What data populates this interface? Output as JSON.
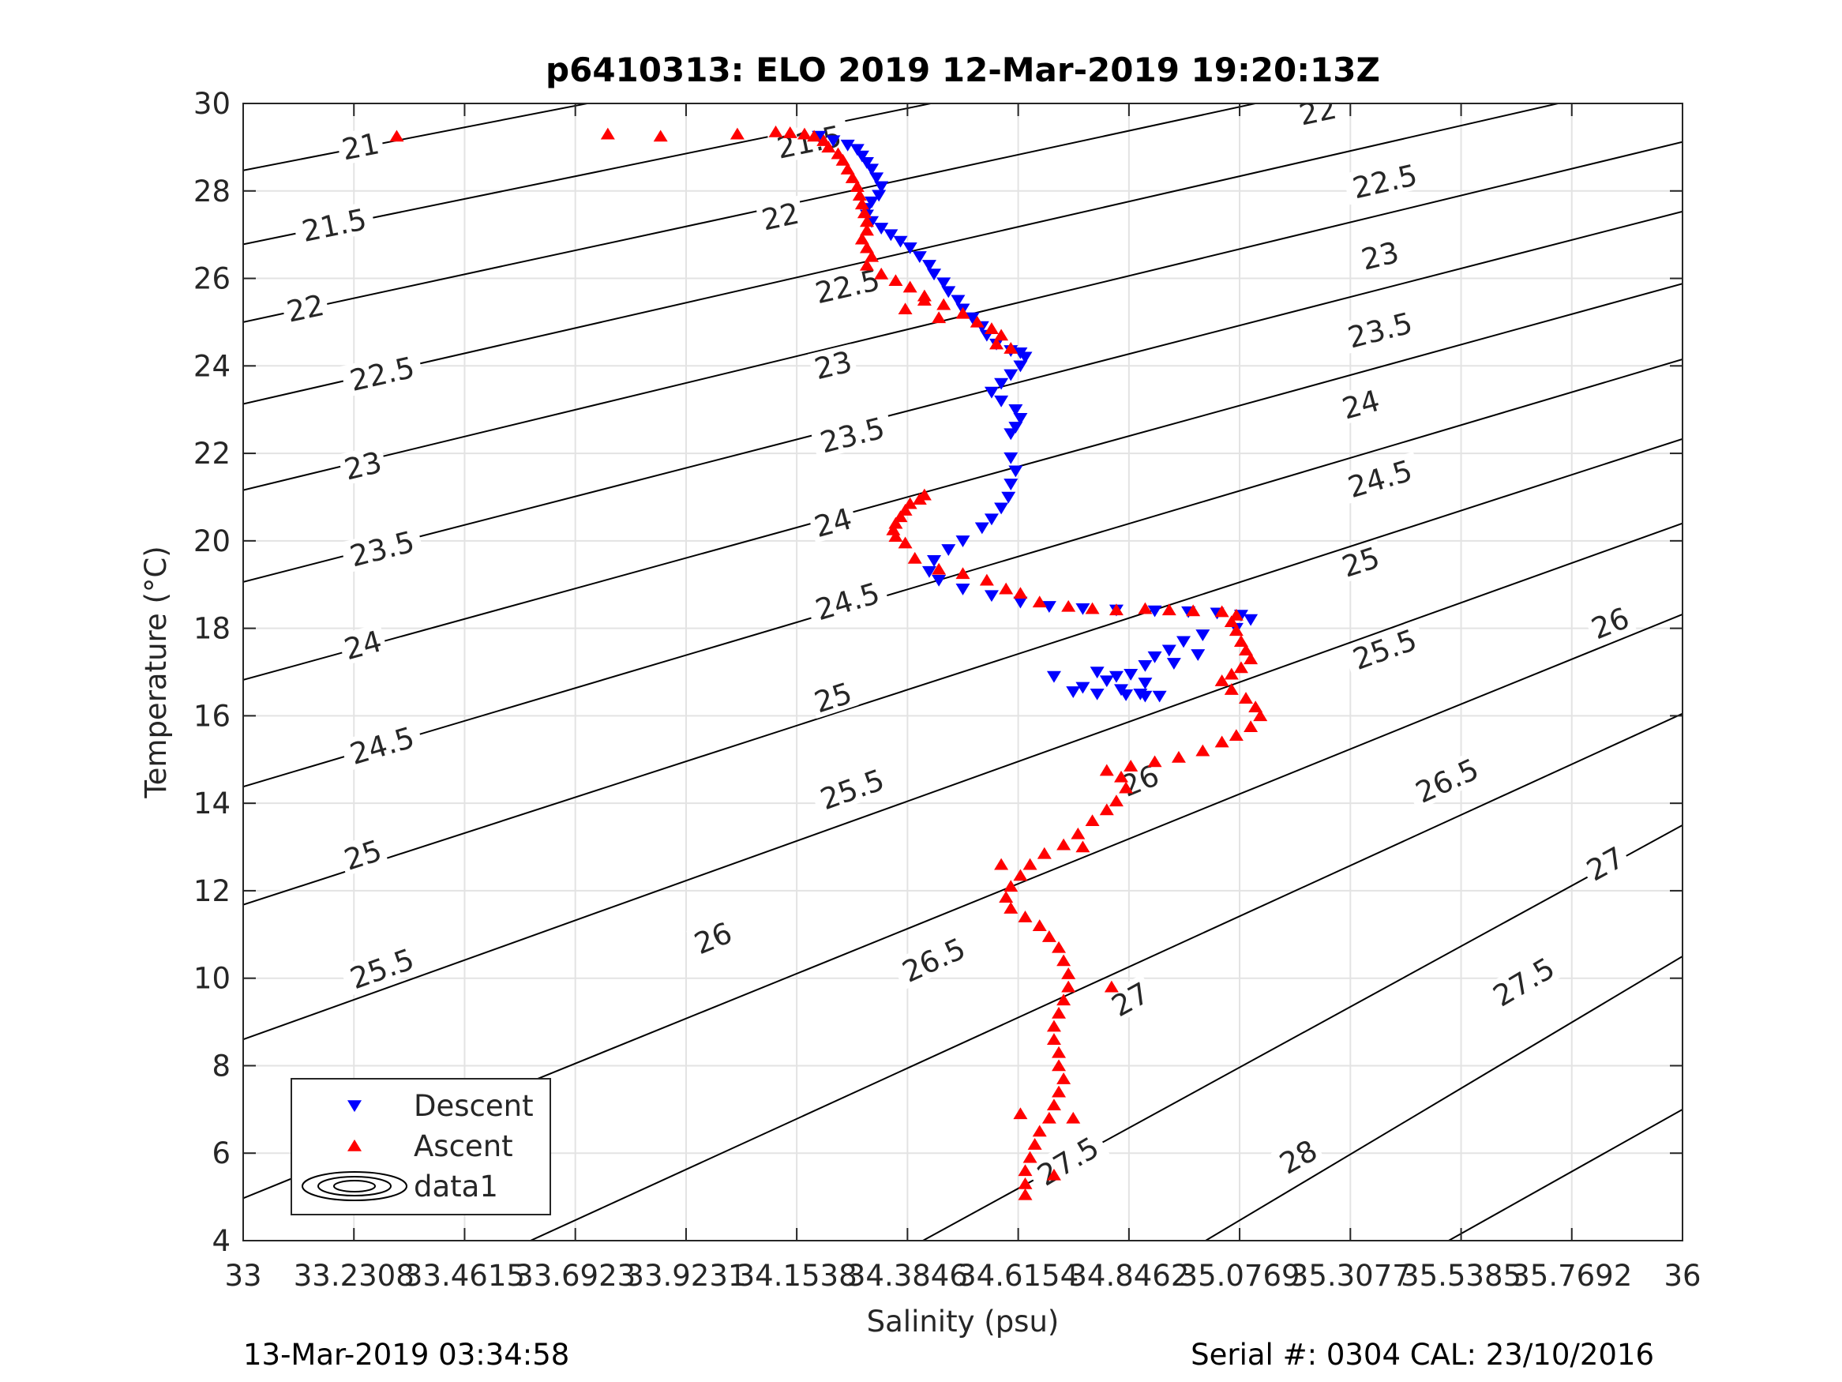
{
  "chart_data": {
    "type": "scatter",
    "title": "p6410313: ELO 2019 12-Mar-2019 19:20:13Z",
    "xlabel": "Salinity (psu)",
    "ylabel": "Temperature (°C)",
    "xlim": [
      33,
      36
    ],
    "ylim": [
      4,
      30
    ],
    "xticks": [
      33,
      33.2308,
      33.4615,
      33.6923,
      33.9231,
      34.1538,
      34.3846,
      34.6154,
      34.8462,
      35.0769,
      35.3077,
      35.5385,
      35.7692,
      36
    ],
    "xtick_labels": [
      "33",
      "33.2308",
      "33.4615",
      "33.6923",
      "33.9231",
      "34.1538",
      "34.3846",
      "34.6154",
      "34.8462",
      "35.0769",
      "35.3077",
      "35.5385",
      "35.7692",
      "36"
    ],
    "yticks": [
      4,
      6,
      8,
      10,
      12,
      14,
      16,
      18,
      20,
      22,
      24,
      26,
      28,
      30
    ],
    "ytick_labels": [
      "4",
      "6",
      "8",
      "10",
      "12",
      "14",
      "16",
      "18",
      "20",
      "22",
      "24",
      "26",
      "28",
      "30"
    ],
    "grid": true,
    "legend_position": "bottom-left",
    "series": [
      {
        "name": "Descent",
        "marker": "triangle-down",
        "color": "#0000ff",
        "points": [
          [
            34.2,
            29.25
          ],
          [
            34.23,
            29.15
          ],
          [
            34.26,
            29.05
          ],
          [
            34.28,
            28.95
          ],
          [
            34.29,
            28.8
          ],
          [
            34.3,
            28.65
          ],
          [
            34.31,
            28.5
          ],
          [
            34.32,
            28.3
          ],
          [
            34.33,
            28.1
          ],
          [
            34.325,
            27.9
          ],
          [
            34.31,
            27.75
          ],
          [
            34.3,
            27.6
          ],
          [
            34.3,
            27.45
          ],
          [
            34.31,
            27.3
          ],
          [
            34.33,
            27.15
          ],
          [
            34.35,
            27.0
          ],
          [
            34.37,
            26.85
          ],
          [
            34.39,
            26.7
          ],
          [
            34.41,
            26.5
          ],
          [
            34.43,
            26.3
          ],
          [
            34.44,
            26.1
          ],
          [
            34.46,
            25.9
          ],
          [
            34.47,
            25.7
          ],
          [
            34.49,
            25.5
          ],
          [
            34.5,
            25.3
          ],
          [
            34.52,
            25.1
          ],
          [
            34.54,
            24.9
          ],
          [
            34.55,
            24.7
          ],
          [
            34.57,
            24.5
          ],
          [
            34.6,
            24.35
          ],
          [
            34.62,
            24.3
          ],
          [
            34.63,
            24.2
          ],
          [
            34.62,
            24.0
          ],
          [
            34.6,
            23.8
          ],
          [
            34.58,
            23.6
          ],
          [
            34.56,
            23.4
          ],
          [
            34.58,
            23.2
          ],
          [
            34.61,
            23.0
          ],
          [
            34.62,
            22.8
          ],
          [
            34.61,
            22.6
          ],
          [
            34.6,
            22.45
          ],
          [
            34.6,
            21.9
          ],
          [
            34.61,
            21.6
          ],
          [
            34.6,
            21.3
          ],
          [
            34.595,
            21.0
          ],
          [
            34.58,
            20.75
          ],
          [
            34.56,
            20.5
          ],
          [
            34.54,
            20.3
          ],
          [
            34.5,
            20.0
          ],
          [
            34.47,
            19.8
          ],
          [
            34.44,
            19.55
          ],
          [
            34.43,
            19.3
          ],
          [
            34.45,
            19.1
          ],
          [
            34.5,
            18.9
          ],
          [
            34.56,
            18.75
          ],
          [
            34.62,
            18.6
          ],
          [
            34.68,
            18.5
          ],
          [
            34.75,
            18.45
          ],
          [
            34.82,
            18.42
          ],
          [
            34.9,
            18.4
          ],
          [
            34.97,
            18.38
          ],
          [
            35.03,
            18.35
          ],
          [
            35.08,
            18.3
          ],
          [
            35.1,
            18.2
          ],
          [
            35.07,
            18.0
          ],
          [
            35.0,
            17.85
          ],
          [
            34.96,
            17.7
          ],
          [
            34.93,
            17.5
          ],
          [
            34.9,
            17.35
          ],
          [
            34.88,
            17.15
          ],
          [
            34.85,
            16.95
          ],
          [
            34.8,
            16.8
          ],
          [
            34.75,
            16.65
          ],
          [
            34.73,
            16.55
          ],
          [
            34.78,
            16.5
          ],
          [
            34.84,
            16.48
          ],
          [
            34.88,
            16.45
          ],
          [
            34.91,
            16.45
          ],
          [
            34.87,
            16.5
          ],
          [
            34.83,
            16.6
          ],
          [
            34.94,
            17.2
          ],
          [
            34.99,
            17.4
          ],
          [
            34.88,
            16.75
          ],
          [
            34.82,
            16.9
          ],
          [
            34.69,
            16.9
          ],
          [
            34.78,
            17.0
          ]
        ]
      },
      {
        "name": "Ascent",
        "marker": "triangle-up",
        "color": "#ff0000",
        "points": [
          [
            33.32,
            29.25
          ],
          [
            33.76,
            29.3
          ],
          [
            33.87,
            29.25
          ],
          [
            34.03,
            29.3
          ],
          [
            34.11,
            29.35
          ],
          [
            34.14,
            29.33
          ],
          [
            34.17,
            29.3
          ],
          [
            34.19,
            29.25
          ],
          [
            34.21,
            29.15
          ],
          [
            34.22,
            29.0
          ],
          [
            34.24,
            28.85
          ],
          [
            34.25,
            28.7
          ],
          [
            34.26,
            28.5
          ],
          [
            34.27,
            28.3
          ],
          [
            34.28,
            28.1
          ],
          [
            34.285,
            27.9
          ],
          [
            34.29,
            27.7
          ],
          [
            34.295,
            27.5
          ],
          [
            34.3,
            27.3
          ],
          [
            34.3,
            27.1
          ],
          [
            34.29,
            26.9
          ],
          [
            34.3,
            26.7
          ],
          [
            34.31,
            26.5
          ],
          [
            34.3,
            26.3
          ],
          [
            34.33,
            26.1
          ],
          [
            34.36,
            25.95
          ],
          [
            34.39,
            25.8
          ],
          [
            34.42,
            25.6
          ],
          [
            34.46,
            25.4
          ],
          [
            34.5,
            25.2
          ],
          [
            34.53,
            25.0
          ],
          [
            34.56,
            24.85
          ],
          [
            34.58,
            24.7
          ],
          [
            34.57,
            24.5
          ],
          [
            34.6,
            24.4
          ],
          [
            34.42,
            25.5
          ],
          [
            34.38,
            25.3
          ],
          [
            34.45,
            25.1
          ],
          [
            34.42,
            21.05
          ],
          [
            34.41,
            20.95
          ],
          [
            34.39,
            20.85
          ],
          [
            34.38,
            20.7
          ],
          [
            34.37,
            20.55
          ],
          [
            34.36,
            20.4
          ],
          [
            34.355,
            20.25
          ],
          [
            34.36,
            20.1
          ],
          [
            34.38,
            19.95
          ],
          [
            34.4,
            19.6
          ],
          [
            34.45,
            19.35
          ],
          [
            34.5,
            19.25
          ],
          [
            34.55,
            19.1
          ],
          [
            34.59,
            18.9
          ],
          [
            34.62,
            18.8
          ],
          [
            34.66,
            18.6
          ],
          [
            34.72,
            18.5
          ],
          [
            34.77,
            18.45
          ],
          [
            34.82,
            18.42
          ],
          [
            34.88,
            18.45
          ],
          [
            34.93,
            18.42
          ],
          [
            34.98,
            18.4
          ],
          [
            35.04,
            18.38
          ],
          [
            35.07,
            18.3
          ],
          [
            35.06,
            18.15
          ],
          [
            35.07,
            17.95
          ],
          [
            35.08,
            17.7
          ],
          [
            35.09,
            17.5
          ],
          [
            35.1,
            17.3
          ],
          [
            35.08,
            17.1
          ],
          [
            35.06,
            16.95
          ],
          [
            35.04,
            16.8
          ],
          [
            35.06,
            16.6
          ],
          [
            35.09,
            16.4
          ],
          [
            35.11,
            16.2
          ],
          [
            35.12,
            16.0
          ],
          [
            35.1,
            15.75
          ],
          [
            35.07,
            15.55
          ],
          [
            35.04,
            15.4
          ],
          [
            35.0,
            15.2
          ],
          [
            34.95,
            15.05
          ],
          [
            34.9,
            14.95
          ],
          [
            34.85,
            14.85
          ],
          [
            34.83,
            14.6
          ],
          [
            34.84,
            14.35
          ],
          [
            34.82,
            14.05
          ],
          [
            34.8,
            13.85
          ],
          [
            34.77,
            13.6
          ],
          [
            34.74,
            13.3
          ],
          [
            34.71,
            13.05
          ],
          [
            34.67,
            12.85
          ],
          [
            34.64,
            12.6
          ],
          [
            34.62,
            12.35
          ],
          [
            34.6,
            12.1
          ],
          [
            34.59,
            11.85
          ],
          [
            34.6,
            11.6
          ],
          [
            34.63,
            11.4
          ],
          [
            34.66,
            11.2
          ],
          [
            34.68,
            10.95
          ],
          [
            34.7,
            10.7
          ],
          [
            34.71,
            10.4
          ],
          [
            34.72,
            10.1
          ],
          [
            34.72,
            9.8
          ],
          [
            34.71,
            9.5
          ],
          [
            34.7,
            9.2
          ],
          [
            34.69,
            8.9
          ],
          [
            34.69,
            8.6
          ],
          [
            34.7,
            8.3
          ],
          [
            34.7,
            8.0
          ],
          [
            34.71,
            7.7
          ],
          [
            34.7,
            7.4
          ],
          [
            34.69,
            7.1
          ],
          [
            34.68,
            6.8
          ],
          [
            34.66,
            6.5
          ],
          [
            34.65,
            6.2
          ],
          [
            34.64,
            5.9
          ],
          [
            34.63,
            5.6
          ],
          [
            34.63,
            5.3
          ],
          [
            34.63,
            5.05
          ],
          [
            34.81,
            9.8
          ],
          [
            34.75,
            13.0
          ],
          [
            34.8,
            14.75
          ],
          [
            34.62,
            6.9
          ],
          [
            34.69,
            5.5
          ],
          [
            34.73,
            6.8
          ],
          [
            34.58,
            12.6
          ]
        ]
      },
      {
        "name": "data1",
        "marker": "contour",
        "color": "#000000"
      }
    ],
    "contours": [
      {
        "level": "21",
        "points": [
          [
            33.0,
            28.47
          ],
          [
            36.0,
            34.87
          ]
        ],
        "label_at": [
          33.245,
          29.0
        ]
      },
      {
        "level": "21.5",
        "points": [
          [
            33.0,
            26.78
          ],
          [
            36.0,
            33.52
          ]
        ],
        "label_at": [
          33.19,
          27.2
        ],
        "label_at2": [
          34.18,
          29.1
        ]
      },
      {
        "level": "22",
        "points": [
          [
            33.0,
            25.0
          ],
          [
            36.0,
            32.11
          ]
        ],
        "label_at": [
          33.13,
          25.3
        ],
        "label_at2": [
          34.12,
          27.4
        ],
        "label_at3": [
          35.24,
          29.8
        ]
      },
      {
        "level": "22.5",
        "points": [
          [
            33.0,
            23.13
          ],
          [
            36.0,
            30.65
          ]
        ],
        "label_at": [
          33.29,
          23.8
        ],
        "label_at2": [
          34.26,
          25.8
        ],
        "label_at3": [
          35.38,
          28.2
        ]
      },
      {
        "level": "23",
        "points": [
          [
            33.0,
            21.16
          ],
          [
            36.0,
            29.12
          ]
        ],
        "label_at": [
          33.25,
          21.7
        ],
        "label_at2": [
          34.23,
          24.0
        ],
        "label_at3": [
          35.37,
          26.5
        ]
      },
      {
        "level": "23.5",
        "points": [
          [
            33.0,
            19.06
          ],
          [
            36.0,
            27.53
          ]
        ],
        "label_at": [
          33.29,
          19.8
        ],
        "label_at2": [
          34.27,
          22.4
        ],
        "label_at3": [
          35.37,
          24.8
        ]
      },
      {
        "level": "24",
        "points": [
          [
            33.0,
            16.82
          ],
          [
            36.0,
            25.88
          ]
        ],
        "label_at": [
          33.25,
          17.6
        ],
        "label_at2": [
          34.23,
          20.4
        ],
        "label_at3": [
          35.33,
          23.1
        ]
      },
      {
        "level": "24.5",
        "points": [
          [
            33.0,
            14.38
          ],
          [
            36.0,
            24.15
          ]
        ],
        "label_at": [
          33.29,
          15.3
        ],
        "label_at2": [
          34.26,
          18.6
        ],
        "label_at3": [
          35.37,
          21.4
        ]
      },
      {
        "level": "25",
        "points": [
          [
            33.0,
            11.68
          ],
          [
            36.0,
            22.33
          ]
        ],
        "label_at": [
          33.25,
          12.8
        ],
        "label_at2": [
          34.23,
          16.4
        ],
        "label_at3": [
          35.33,
          19.5
        ]
      },
      {
        "level": "25.5",
        "points": [
          [
            33.0,
            8.6
          ],
          [
            36.0,
            20.4
          ]
        ],
        "label_at": [
          33.29,
          10.2
        ],
        "label_at2": [
          34.27,
          14.3
        ],
        "label_at3": [
          35.38,
          17.5
        ]
      },
      {
        "level": "26",
        "points": [
          [
            33.0,
            4.97
          ],
          [
            36.0,
            18.32
          ]
        ],
        "label_at": [
          33.98,
          10.9
        ],
        "label_at2": [
          34.87,
          14.5
        ],
        "label_at3": [
          35.85,
          18.1
        ]
      },
      {
        "level": "26.5",
        "points": [
          [
            33.3,
            2.5
          ],
          [
            36.0,
            16.05
          ]
        ],
        "label_at": [
          33.55,
          5.9
        ],
        "label_at2": [
          34.44,
          10.4
        ],
        "label_at3": [
          35.51,
          14.5
        ]
      },
      {
        "level": "27",
        "points": [
          [
            34.0,
            1.5
          ],
          [
            36.0,
            13.5
          ]
        ],
        "label_at": [
          34.85,
          9.5
        ],
        "label_at2": [
          35.84,
          12.6
        ]
      },
      {
        "level": "27.5",
        "points": [
          [
            34.7,
            2.0
          ],
          [
            36.0,
            10.5
          ]
        ],
        "label_at": [
          34.72,
          5.8
        ],
        "label_at2": [
          35.67,
          9.9
        ]
      },
      {
        "level": "28",
        "points": [
          [
            35.35,
            3.0
          ],
          [
            36.0,
            7.0
          ]
        ],
        "label_at": [
          35.2,
          5.9
        ]
      }
    ],
    "legend": [
      "Descent",
      "Ascent",
      "data1"
    ]
  },
  "footer": {
    "left": "13-Mar-2019 03:34:58",
    "right": "Serial #: 0304  CAL: 23/10/2016"
  }
}
